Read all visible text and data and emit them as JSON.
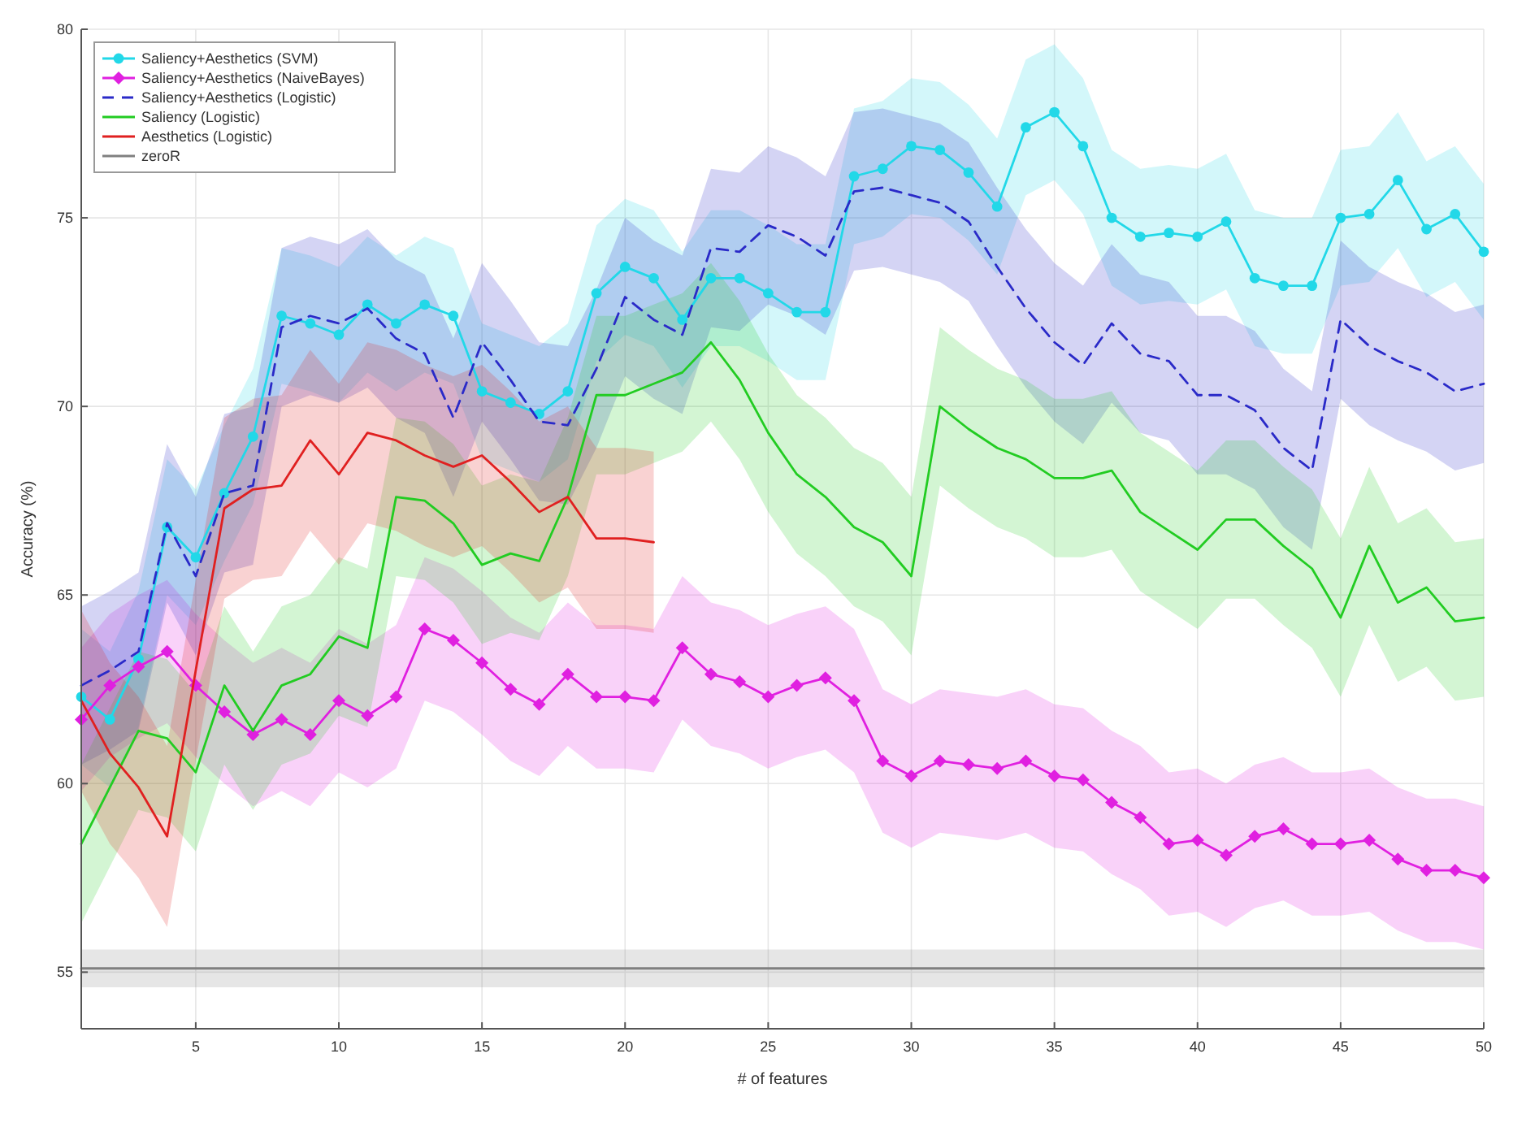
{
  "chart_data": {
    "type": "line",
    "xlabel": "# of features",
    "ylabel": "Accuracy (%)",
    "xlim": [
      1,
      50
    ],
    "xticks": [
      5,
      10,
      15,
      20,
      25,
      30,
      35,
      40,
      45,
      50
    ],
    "ylim": [
      53.5,
      80
    ],
    "yticks": [
      55,
      60,
      65,
      70,
      75,
      80
    ],
    "grid": true,
    "legend": "top left",
    "x": [
      1,
      2,
      3,
      4,
      5,
      6,
      7,
      8,
      9,
      10,
      11,
      12,
      13,
      14,
      15,
      16,
      17,
      18,
      19,
      20,
      21,
      22,
      23,
      24,
      25,
      26,
      27,
      28,
      29,
      30,
      31,
      32,
      33,
      34,
      35,
      36,
      37,
      38,
      39,
      40,
      41,
      42,
      43,
      44,
      45,
      46,
      47,
      48,
      49,
      50
    ],
    "series": [
      {
        "name": "Saliency+Aesthetics (SVM)",
        "color": "#22d8e8",
        "marker": "circle",
        "line_style": "solid",
        "values": [
          62.3,
          61.7,
          63.3,
          66.8,
          66.0,
          67.7,
          69.2,
          72.4,
          72.2,
          71.9,
          72.7,
          72.2,
          72.7,
          72.4,
          70.4,
          70.1,
          69.8,
          70.4,
          73.0,
          73.7,
          73.4,
          72.3,
          73.4,
          73.4,
          73.0,
          72.5,
          72.5,
          76.1,
          76.3,
          76.9,
          76.8,
          76.2,
          75.3,
          77.4,
          77.8,
          76.9,
          75.0,
          74.5,
          74.6,
          74.5,
          74.9,
          73.4,
          73.2,
          73.2,
          75.0,
          75.1,
          76.0,
          74.7,
          75.1,
          74.1
        ],
        "lower": [
          60.5,
          59.9,
          61.5,
          65.0,
          64.2,
          65.9,
          67.4,
          70.6,
          70.4,
          70.1,
          70.9,
          70.4,
          70.9,
          70.6,
          68.6,
          68.3,
          68.0,
          68.6,
          71.2,
          71.9,
          71.6,
          70.5,
          71.6,
          71.6,
          71.2,
          70.7,
          70.7,
          74.3,
          74.5,
          75.1,
          75.0,
          74.4,
          73.5,
          75.6,
          76.0,
          75.1,
          73.2,
          72.7,
          72.8,
          72.7,
          73.1,
          71.6,
          71.4,
          71.4,
          73.2,
          73.3,
          74.2,
          72.9,
          73.3,
          72.3
        ],
        "upper": [
          64.1,
          63.5,
          65.1,
          68.6,
          67.8,
          69.5,
          71.0,
          74.2,
          74.0,
          73.7,
          74.5,
          74.0,
          74.5,
          74.2,
          72.2,
          71.9,
          71.6,
          72.2,
          74.8,
          75.5,
          75.2,
          74.1,
          75.2,
          75.2,
          74.8,
          74.3,
          74.3,
          77.9,
          78.1,
          78.7,
          78.6,
          78.0,
          77.1,
          79.2,
          79.6,
          78.7,
          76.8,
          76.3,
          76.4,
          76.3,
          76.7,
          75.2,
          75.0,
          75.0,
          76.8,
          76.9,
          77.8,
          76.5,
          76.9,
          75.9
        ]
      },
      {
        "name": "Saliency+Aesthetics (NaiveBayes)",
        "color": "#e020e0",
        "marker": "diamond",
        "line_style": "solid",
        "values": [
          61.7,
          62.6,
          63.1,
          63.5,
          62.6,
          61.9,
          61.3,
          61.7,
          61.3,
          62.2,
          61.8,
          62.3,
          64.1,
          63.8,
          63.2,
          62.5,
          62.1,
          62.9,
          62.3,
          62.3,
          62.2,
          63.6,
          62.9,
          62.7,
          62.3,
          62.6,
          62.8,
          62.2,
          60.6,
          60.2,
          60.6,
          60.5,
          60.4,
          60.6,
          60.2,
          60.1,
          59.5,
          59.1,
          58.4,
          58.5,
          58.1,
          58.6,
          58.8,
          58.4,
          58.4,
          58.5,
          58.0,
          57.7,
          57.7,
          57.5
        ],
        "lower": [
          59.8,
          60.7,
          61.2,
          61.6,
          60.7,
          60.0,
          59.4,
          59.8,
          59.4,
          60.3,
          59.9,
          60.4,
          62.2,
          61.9,
          61.3,
          60.6,
          60.2,
          61.0,
          60.4,
          60.4,
          60.3,
          61.7,
          61.0,
          60.8,
          60.4,
          60.7,
          60.9,
          60.3,
          58.7,
          58.3,
          58.7,
          58.6,
          58.5,
          58.7,
          58.3,
          58.2,
          57.6,
          57.2,
          56.5,
          56.6,
          56.2,
          56.7,
          56.9,
          56.5,
          56.5,
          56.6,
          56.1,
          55.8,
          55.8,
          55.6
        ],
        "upper": [
          63.6,
          64.5,
          65.0,
          65.4,
          64.5,
          63.8,
          63.2,
          63.6,
          63.2,
          64.1,
          63.7,
          64.2,
          66.0,
          65.7,
          65.1,
          64.4,
          64.0,
          64.8,
          64.2,
          64.2,
          64.1,
          65.5,
          64.8,
          64.6,
          64.2,
          64.5,
          64.7,
          64.1,
          62.5,
          62.1,
          62.5,
          62.4,
          62.3,
          62.5,
          62.1,
          62.0,
          61.4,
          61.0,
          60.3,
          60.4,
          60.0,
          60.5,
          60.7,
          60.3,
          60.3,
          60.4,
          59.9,
          59.6,
          59.6,
          59.4
        ]
      },
      {
        "name": "Saliency+Aesthetics (Logistic)",
        "color": "#2a2ac8",
        "marker": "none",
        "line_style": "dashed",
        "values": [
          62.6,
          63.0,
          63.5,
          66.9,
          65.5,
          67.7,
          67.9,
          72.1,
          72.4,
          72.2,
          72.6,
          71.8,
          71.4,
          69.7,
          71.7,
          70.7,
          69.6,
          69.5,
          71.0,
          72.9,
          72.3,
          71.9,
          74.2,
          74.1,
          74.8,
          74.5,
          74.0,
          75.7,
          75.8,
          75.6,
          75.4,
          74.9,
          73.7,
          72.6,
          71.7,
          71.1,
          72.2,
          71.4,
          71.2,
          70.3,
          70.3,
          69.9,
          68.9,
          68.3,
          72.3,
          71.6,
          71.2,
          70.9,
          70.4,
          70.6
        ],
        "lower": [
          60.5,
          60.9,
          61.4,
          64.8,
          63.4,
          65.6,
          65.8,
          70.0,
          70.3,
          70.1,
          70.5,
          69.7,
          69.3,
          67.6,
          69.6,
          68.6,
          67.5,
          67.4,
          68.9,
          70.8,
          70.2,
          69.8,
          72.1,
          72.0,
          72.7,
          72.4,
          71.9,
          73.6,
          73.7,
          73.5,
          73.3,
          72.8,
          71.6,
          70.5,
          69.6,
          69.0,
          70.1,
          69.3,
          69.1,
          68.2,
          68.2,
          67.8,
          66.8,
          66.2,
          70.2,
          69.5,
          69.1,
          68.8,
          68.3,
          68.5
        ],
        "upper": [
          64.7,
          65.1,
          65.6,
          69.0,
          67.6,
          69.8,
          70.0,
          74.2,
          74.5,
          74.3,
          74.7,
          73.9,
          73.5,
          71.8,
          73.8,
          72.8,
          71.7,
          71.6,
          73.1,
          75.0,
          74.4,
          74.0,
          76.3,
          76.2,
          76.9,
          76.6,
          76.1,
          77.8,
          77.9,
          77.7,
          77.5,
          77.0,
          75.8,
          74.7,
          73.8,
          73.2,
          74.3,
          73.5,
          73.3,
          72.4,
          72.4,
          72.0,
          71.0,
          70.4,
          74.4,
          73.7,
          73.3,
          73.0,
          72.5,
          72.7
        ]
      },
      {
        "name": "Saliency (Logistic)",
        "color": "#22cc22",
        "marker": "none",
        "line_style": "solid",
        "values": [
          58.4,
          59.9,
          61.4,
          61.2,
          60.3,
          62.6,
          61.4,
          62.6,
          62.9,
          63.9,
          63.6,
          67.6,
          67.5,
          66.9,
          65.8,
          66.1,
          65.9,
          67.6,
          70.3,
          70.3,
          70.6,
          70.9,
          71.7,
          70.7,
          69.3,
          68.2,
          67.6,
          66.8,
          66.4,
          65.5,
          70.0,
          69.4,
          68.9,
          68.6,
          68.1,
          68.1,
          68.3,
          67.2,
          66.7,
          66.2,
          67.0,
          67.0,
          66.3,
          65.7,
          64.4,
          66.3,
          64.8,
          65.2,
          64.3,
          64.4
        ],
        "lower": [
          56.3,
          57.8,
          59.3,
          59.1,
          58.2,
          60.5,
          59.3,
          60.5,
          60.8,
          61.8,
          61.5,
          65.5,
          65.4,
          64.8,
          63.7,
          64.0,
          63.8,
          65.5,
          68.2,
          68.2,
          68.5,
          68.8,
          69.6,
          68.6,
          67.2,
          66.1,
          65.5,
          64.7,
          64.3,
          63.4,
          67.9,
          67.3,
          66.8,
          66.5,
          66.0,
          66.0,
          66.2,
          65.1,
          64.6,
          64.1,
          64.9,
          64.9,
          64.2,
          63.6,
          62.3,
          64.2,
          62.7,
          63.1,
          62.2,
          62.3
        ],
        "upper": [
          60.5,
          62.0,
          63.5,
          63.3,
          62.4,
          64.7,
          63.5,
          64.7,
          65.0,
          66.0,
          65.7,
          69.7,
          69.6,
          69.0,
          67.9,
          68.2,
          68.0,
          69.7,
          72.4,
          72.4,
          72.7,
          73.0,
          73.8,
          72.8,
          71.4,
          70.3,
          69.7,
          68.9,
          68.5,
          67.6,
          72.1,
          71.5,
          71.0,
          70.7,
          70.2,
          70.2,
          70.4,
          69.3,
          68.8,
          68.3,
          69.1,
          69.1,
          68.4,
          67.8,
          66.5,
          68.4,
          66.9,
          67.3,
          66.4,
          66.5
        ]
      },
      {
        "name": "Aesthetics (Logistic)",
        "color": "#e02020",
        "marker": "none",
        "line_style": "solid",
        "x": [
          1,
          2,
          3,
          4,
          5,
          6,
          7,
          8,
          9,
          10,
          11,
          12,
          13,
          14,
          15,
          16,
          17,
          18,
          19,
          20,
          21
        ],
        "values": [
          62.2,
          60.8,
          59.9,
          58.6,
          63.0,
          67.3,
          67.8,
          67.9,
          69.1,
          68.2,
          69.3,
          69.1,
          68.7,
          68.4,
          68.7,
          68.0,
          67.2,
          67.6,
          66.5,
          66.5,
          66.4
        ],
        "lower": [
          59.8,
          58.4,
          57.5,
          56.2,
          60.6,
          64.9,
          65.4,
          65.5,
          66.7,
          65.8,
          66.9,
          66.7,
          66.3,
          66.0,
          66.3,
          65.6,
          64.8,
          65.2,
          64.1,
          64.1,
          64.0
        ],
        "upper": [
          64.6,
          63.2,
          62.3,
          61.0,
          65.4,
          69.7,
          70.2,
          70.3,
          71.5,
          70.6,
          71.7,
          71.5,
          71.1,
          70.8,
          71.1,
          70.4,
          69.6,
          70.0,
          68.9,
          68.9,
          68.8
        ]
      },
      {
        "name": "zeroR",
        "color": "#808080",
        "marker": "none",
        "line_style": "solid",
        "x": [
          1,
          50
        ],
        "values": [
          55.1,
          55.1
        ],
        "lower": [
          54.6,
          54.6
        ],
        "upper": [
          55.6,
          55.6
        ]
      }
    ]
  }
}
